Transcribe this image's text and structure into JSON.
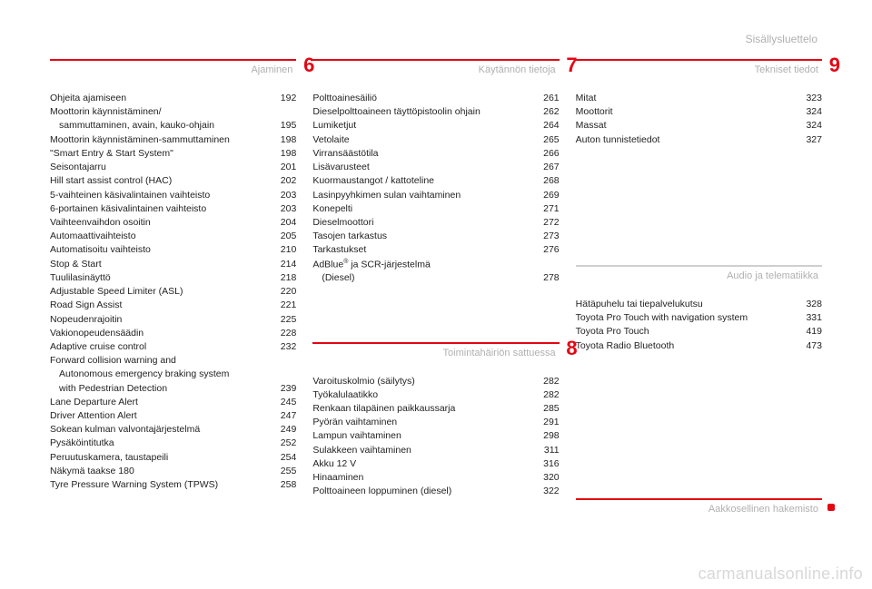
{
  "page_header": "Sisällysluettelo",
  "watermark": "carmanualsonline.info",
  "colors": {
    "accent": "#e30613",
    "muted_rule": "#cfcfcf",
    "muted_text": "#b0b0b0"
  },
  "sections": {
    "s6": {
      "number": "6",
      "title": "Ajaminen",
      "entries": [
        {
          "label": "Ohjeita ajamiseen",
          "page": "192"
        },
        {
          "label": "Moottorin käynnistäminen/",
          "page": ""
        },
        {
          "label": "sammuttaminen, avain, kauko-ohjain",
          "page": "195",
          "sub": true
        },
        {
          "label": "Moottorin käynnistäminen-sammuttaminen",
          "page": "198"
        },
        {
          "label": "\"Smart Entry & Start System\"",
          "page": "198"
        },
        {
          "label": "Seisontajarru",
          "page": "201"
        },
        {
          "label": "Hill start assist control (HAC)",
          "page": "202"
        },
        {
          "label": "5-vaihteinen käsivalintainen vaihteisto",
          "page": "203"
        },
        {
          "label": "6-portainen käsivalintainen vaihteisto",
          "page": "203"
        },
        {
          "label": "Vaihteenvaihdon osoitin",
          "page": "204"
        },
        {
          "label": "Automaattivaihteisto",
          "page": "205"
        },
        {
          "label": "Automatisoitu vaihteisto",
          "page": "210"
        },
        {
          "label": "Stop & Start",
          "page": "214"
        },
        {
          "label": "Tuulilasinäyttö",
          "page": "218"
        },
        {
          "label": "Adjustable Speed Limiter (ASL)",
          "page": "220"
        },
        {
          "label": "Road Sign Assist",
          "page": "221"
        },
        {
          "label": "Nopeudenrajoitin",
          "page": "225"
        },
        {
          "label": "Vakionopeudensäädin",
          "page": "228"
        },
        {
          "label": "Adaptive cruise control",
          "page": "232"
        },
        {
          "label": "Forward collision warning and",
          "page": ""
        },
        {
          "label": "Autonomous emergency braking system",
          "page": "",
          "sub": true
        },
        {
          "label": "with Pedestrian Detection",
          "page": "239",
          "sub": true
        },
        {
          "label": "Lane Departure Alert",
          "page": "245"
        },
        {
          "label": "Driver Attention Alert",
          "page": "247"
        },
        {
          "label": "Sokean kulman valvontajärjestelmä",
          "page": "249"
        },
        {
          "label": "Pysäköintitutka",
          "page": "252"
        },
        {
          "label": "Peruutuskamera, taustapeili",
          "page": "254"
        },
        {
          "label": "Näkymä taakse 180",
          "page": "255"
        },
        {
          "label": "Tyre Pressure Warning System (TPWS)",
          "page": "258"
        }
      ]
    },
    "s7": {
      "number": "7",
      "title": "Käytännön tietoja",
      "entries": [
        {
          "label": "Polttoainesäiliö",
          "page": "261"
        },
        {
          "label": "Dieselpolttoaineen täyttöpistoolin ohjain",
          "page": "262"
        },
        {
          "label": "Lumiketjut",
          "page": "264"
        },
        {
          "label": "Vetolaite",
          "page": "265"
        },
        {
          "label": "Virransäästötila",
          "page": "266"
        },
        {
          "label": "Lisävarusteet",
          "page": "267"
        },
        {
          "label": "Kuormaustangot / kattoteline",
          "page": "268"
        },
        {
          "label": "Lasinpyyhkimen sulan vaihtaminen",
          "page": "269"
        },
        {
          "label": "Konepelti",
          "page": "271"
        },
        {
          "label": "Dieselmoottori",
          "page": "272"
        },
        {
          "label": "Tasojen tarkastus",
          "page": "273"
        },
        {
          "label": "Tarkastukset",
          "page": "276"
        },
        {
          "label": "AdBlue® ja SCR-järjestelmä",
          "page": ""
        },
        {
          "label": "(Diesel)",
          "page": "278",
          "sub": true
        }
      ]
    },
    "s8": {
      "number": "8",
      "title": "Toimintahäiriön sattuessa",
      "entries": [
        {
          "label": "Varoituskolmio (säilytys)",
          "page": "282"
        },
        {
          "label": "Työkalulaatikko",
          "page": "282"
        },
        {
          "label": "Renkaan tilapäinen paikkaussarja",
          "page": "285"
        },
        {
          "label": "Pyörän vaihtaminen",
          "page": "291"
        },
        {
          "label": "Lampun vaihtaminen",
          "page": "298"
        },
        {
          "label": "Sulakkeen vaihtaminen",
          "page": "311"
        },
        {
          "label": "Akku 12 V",
          "page": "316"
        },
        {
          "label": "Hinaaminen",
          "page": "320"
        },
        {
          "label": "Polttoaineen loppuminen (diesel)",
          "page": "322"
        }
      ]
    },
    "s9": {
      "number": "9",
      "title": "Tekniset tiedot",
      "entries": [
        {
          "label": "Mitat",
          "page": "323"
        },
        {
          "label": "Moottorit",
          "page": "324"
        },
        {
          "label": "Massat",
          "page": "324"
        },
        {
          "label": "Auton tunnistetiedot",
          "page": "327"
        }
      ]
    },
    "audio": {
      "title": "Audio ja telematiikka",
      "entries": [
        {
          "label": "Hätäpuhelu tai tiepalvelukutsu",
          "page": "328"
        },
        {
          "label": "Toyota Pro Touch with navigation system",
          "page": "331"
        },
        {
          "label": "Toyota Pro Touch",
          "page": "419"
        },
        {
          "label": "Toyota Radio Bluetooth",
          "page": "473"
        }
      ]
    },
    "index": {
      "title": "Aakkosellinen hakemisto"
    }
  }
}
